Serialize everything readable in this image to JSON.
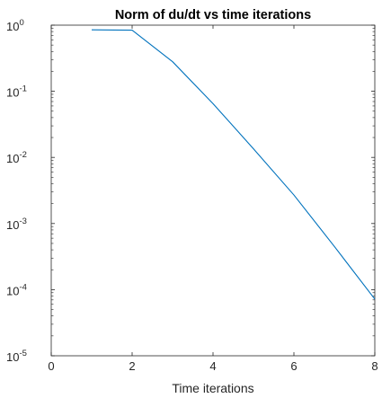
{
  "chart_data": {
    "type": "line",
    "title": "Norm of du/dt vs time iterations",
    "xlabel": "Time iterations",
    "ylabel": "",
    "xlim": [
      0,
      8
    ],
    "ylim": [
      1e-05,
      1
    ],
    "yscale": "log",
    "grid": false,
    "x_ticks": [
      {
        "value": 0,
        "label": "0"
      },
      {
        "value": 2,
        "label": "2"
      },
      {
        "value": 4,
        "label": "4"
      },
      {
        "value": 6,
        "label": "6"
      },
      {
        "value": 8,
        "label": "8"
      }
    ],
    "y_ticks": [
      {
        "value": 1,
        "base": "10",
        "exp": "0"
      },
      {
        "value": 0.1,
        "base": "10",
        "exp": "-1"
      },
      {
        "value": 0.01,
        "base": "10",
        "exp": "-2"
      },
      {
        "value": 0.001,
        "base": "10",
        "exp": "-3"
      },
      {
        "value": 0.0001,
        "base": "10",
        "exp": "-4"
      },
      {
        "value": 1e-05,
        "base": "10",
        "exp": "-5"
      }
    ],
    "series": [
      {
        "color": "#0072BD",
        "x": [
          1,
          2,
          3,
          4,
          5,
          6,
          7,
          8
        ],
        "y": [
          0.85,
          0.84,
          0.28,
          0.065,
          0.0135,
          0.0027,
          0.00045,
          7.2e-05
        ]
      }
    ]
  }
}
